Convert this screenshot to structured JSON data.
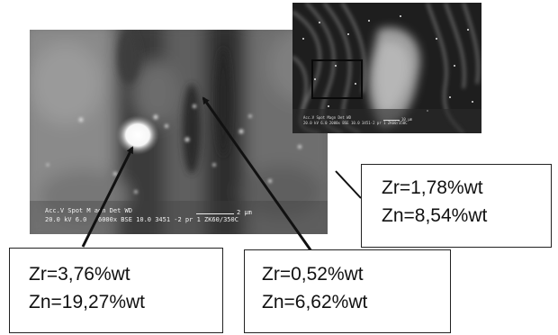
{
  "main_micrograph": {
    "meta_line_1": "Acc.V  Spot M agn   Det  WD",
    "meta_line_2": "20.0 kV 6.0    6000x  BSE 10.0  3451 -2 pr 1 ZK60/350C",
    "scale_label": "2 μm"
  },
  "inset_micrograph": {
    "meta_line_1": "Acc.V  Spot Magn   Det  WD",
    "meta_line_2": "20.0 kV 6.0  2000x  BSE 10.0  3451-2 pr 1 ZK60/350C",
    "scale_label": "10 μm"
  },
  "callouts": {
    "right": {
      "zr": "Zr=1,78%wt",
      "zn": "Zn=8,54%wt"
    },
    "left": {
      "zr": "Zr=3,76%wt",
      "zn": "Zn=19,27%wt"
    },
    "middle": {
      "zr": "Zr=0,52%wt",
      "zn": "Zn=6,62%wt"
    }
  },
  "colors": {
    "box_border": "#222222",
    "arrow": "#111111"
  }
}
